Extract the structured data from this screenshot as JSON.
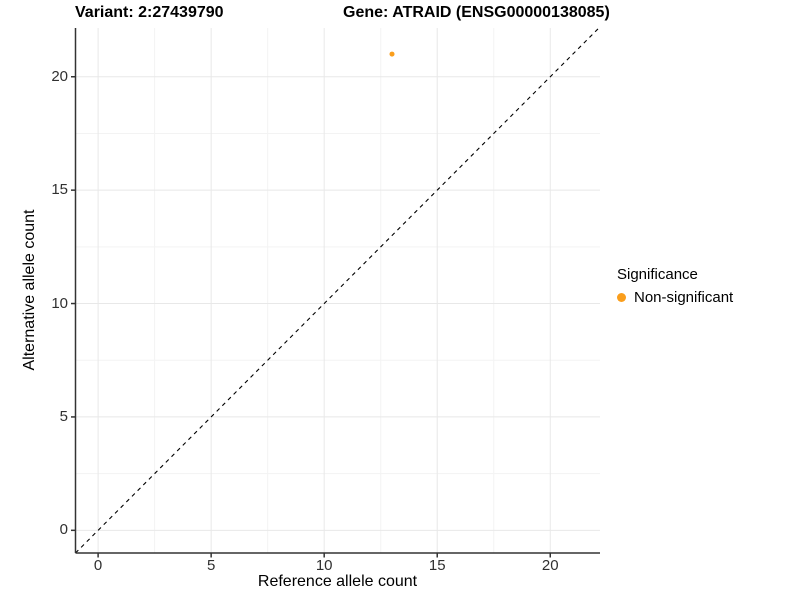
{
  "titles": {
    "variant": "Variant: 2:27439790",
    "gene": "Gene: ATRAID (ENSG00000138085)"
  },
  "colors": {
    "point_orange": "#FA9E1C",
    "grid_major": "#E8E8E8",
    "grid_minor": "#F3F3F3",
    "axis": "#333333",
    "abline": "#000000",
    "background": "#FFFFFF"
  },
  "chart_data": {
    "type": "scatter",
    "title_left": "Variant: 2:27439790",
    "title_right": "Gene: ATRAID (ENSG00000138085)",
    "xlabel": "Reference allele count",
    "ylabel": "Alternative allele count",
    "xlim": [
      -1,
      22.2
    ],
    "ylim": [
      -1,
      22.15
    ],
    "x_ticks": [
      0,
      5,
      10,
      15,
      20
    ],
    "y_ticks": [
      0,
      5,
      10,
      15,
      20
    ],
    "x_minor_ticks": [
      2.5,
      7.5,
      12.5,
      17.5
    ],
    "y_minor_ticks": [
      2.5,
      7.5,
      12.5,
      17.5
    ],
    "grid": true,
    "points": [
      {
        "x": 13,
        "y": 21,
        "series": "Non-significant",
        "color": "#FA9E1C"
      }
    ],
    "abline": {
      "slope": 1,
      "intercept": 0,
      "style": "dashed",
      "color": "#000000"
    },
    "legend": {
      "title": "Significance",
      "position": "right",
      "entries": [
        {
          "label": "Non-significant",
          "color": "#FA9E1C"
        }
      ]
    }
  }
}
